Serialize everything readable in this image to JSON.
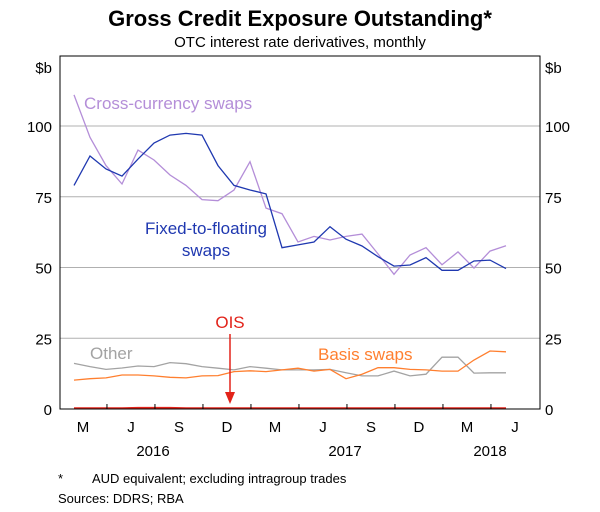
{
  "chart_data": {
    "type": "line",
    "title": "Gross Credit Exposure Outstanding*",
    "subtitle": "OTC interest rate derivatives, monthly",
    "ylabel_left": "$b",
    "ylabel_right": "$b",
    "ylim": [
      0,
      125
    ],
    "yticks": [
      0,
      25,
      50,
      75,
      100
    ],
    "grid": true,
    "x": [
      "Mar-2016",
      "Apr-2016",
      "May-2016",
      "Jun-2016",
      "Jul-2016",
      "Aug-2016",
      "Sep-2016",
      "Oct-2016",
      "Nov-2016",
      "Dec-2016",
      "Jan-2017",
      "Feb-2017",
      "Mar-2017",
      "Apr-2017",
      "May-2017",
      "Jun-2017",
      "Jul-2017",
      "Aug-2017",
      "Sep-2017",
      "Oct-2017",
      "Nov-2017",
      "Dec-2017",
      "Jan-2018",
      "Feb-2018",
      "Mar-2018",
      "Apr-2018",
      "May-2018",
      "Jun-2018"
    ],
    "month_tick_labels": [
      "M",
      "J",
      "S",
      "D",
      "M",
      "J",
      "S",
      "D",
      "M",
      "J"
    ],
    "year_labels": [
      "2016",
      "2017",
      "2018"
    ],
    "series": [
      {
        "name": "Cross-currency swaps",
        "color": "#b48ed8",
        "values": [
          111,
          96,
          86,
          79.5,
          91.5,
          88,
          82.7,
          79,
          74,
          73.6,
          77.4,
          87.4,
          71,
          69,
          59,
          61,
          59.7,
          61,
          61.8,
          54.8,
          47.6,
          54.4,
          57,
          51,
          55.5,
          49.8,
          55.8,
          57.7
        ]
      },
      {
        "name": "Fixed-to-floating swaps",
        "color": "#1f38b0",
        "values": [
          79,
          89.4,
          84.8,
          82.3,
          88.3,
          94,
          96.8,
          97.4,
          96.8,
          86,
          79,
          77.4,
          76,
          57,
          58,
          59,
          64.4,
          60,
          57.6,
          53.8,
          50.5,
          50.9,
          53.5,
          49,
          49,
          52.3,
          52.6,
          49.6
        ]
      },
      {
        "name": "Other",
        "color": "#a3a3a3",
        "values": [
          16.1,
          15,
          14,
          14.5,
          15.2,
          15,
          16.4,
          16,
          15,
          14.4,
          13.8,
          15,
          14.4,
          13.8,
          13.8,
          13.8,
          14,
          12.8,
          11.7,
          11.7,
          13.4,
          11.7,
          12.3,
          18.3,
          18.3,
          12.7,
          12.8,
          12.8
        ]
      },
      {
        "name": "Basis swaps",
        "color": "#ff7f2f",
        "values": [
          10.2,
          10.7,
          11,
          12,
          12,
          11.7,
          11.2,
          11,
          11.7,
          11.8,
          13.2,
          13.5,
          13.2,
          13.8,
          14.4,
          13.4,
          14,
          10.7,
          12.3,
          14.6,
          14.6,
          14,
          13.8,
          13.4,
          13.4,
          17.3,
          20.5,
          20.2
        ]
      },
      {
        "name": "OIS",
        "color": "#e2231a",
        "values": [
          0.3,
          0.3,
          0.3,
          0.3,
          0.4,
          0.4,
          0.4,
          0.3,
          0.3,
          0.3,
          0.3,
          0.3,
          0.3,
          0.3,
          0.3,
          0.3,
          0.3,
          0.3,
          0.3,
          0.3,
          0.3,
          0.3,
          0.3,
          0.3,
          0.3,
          0.3,
          0.3,
          0.3
        ]
      }
    ],
    "annotations": {
      "cross_currency": "Cross-currency swaps",
      "fixed_line1": "Fixed-to-floating",
      "fixed_line2": "swaps",
      "ois": "OIS",
      "other": "Other",
      "basis": "Basis swaps"
    },
    "footnote": "AUD equivalent; excluding intragroup trades",
    "footnote_marker": "*",
    "sources": "Sources:   DDRS; RBA"
  }
}
